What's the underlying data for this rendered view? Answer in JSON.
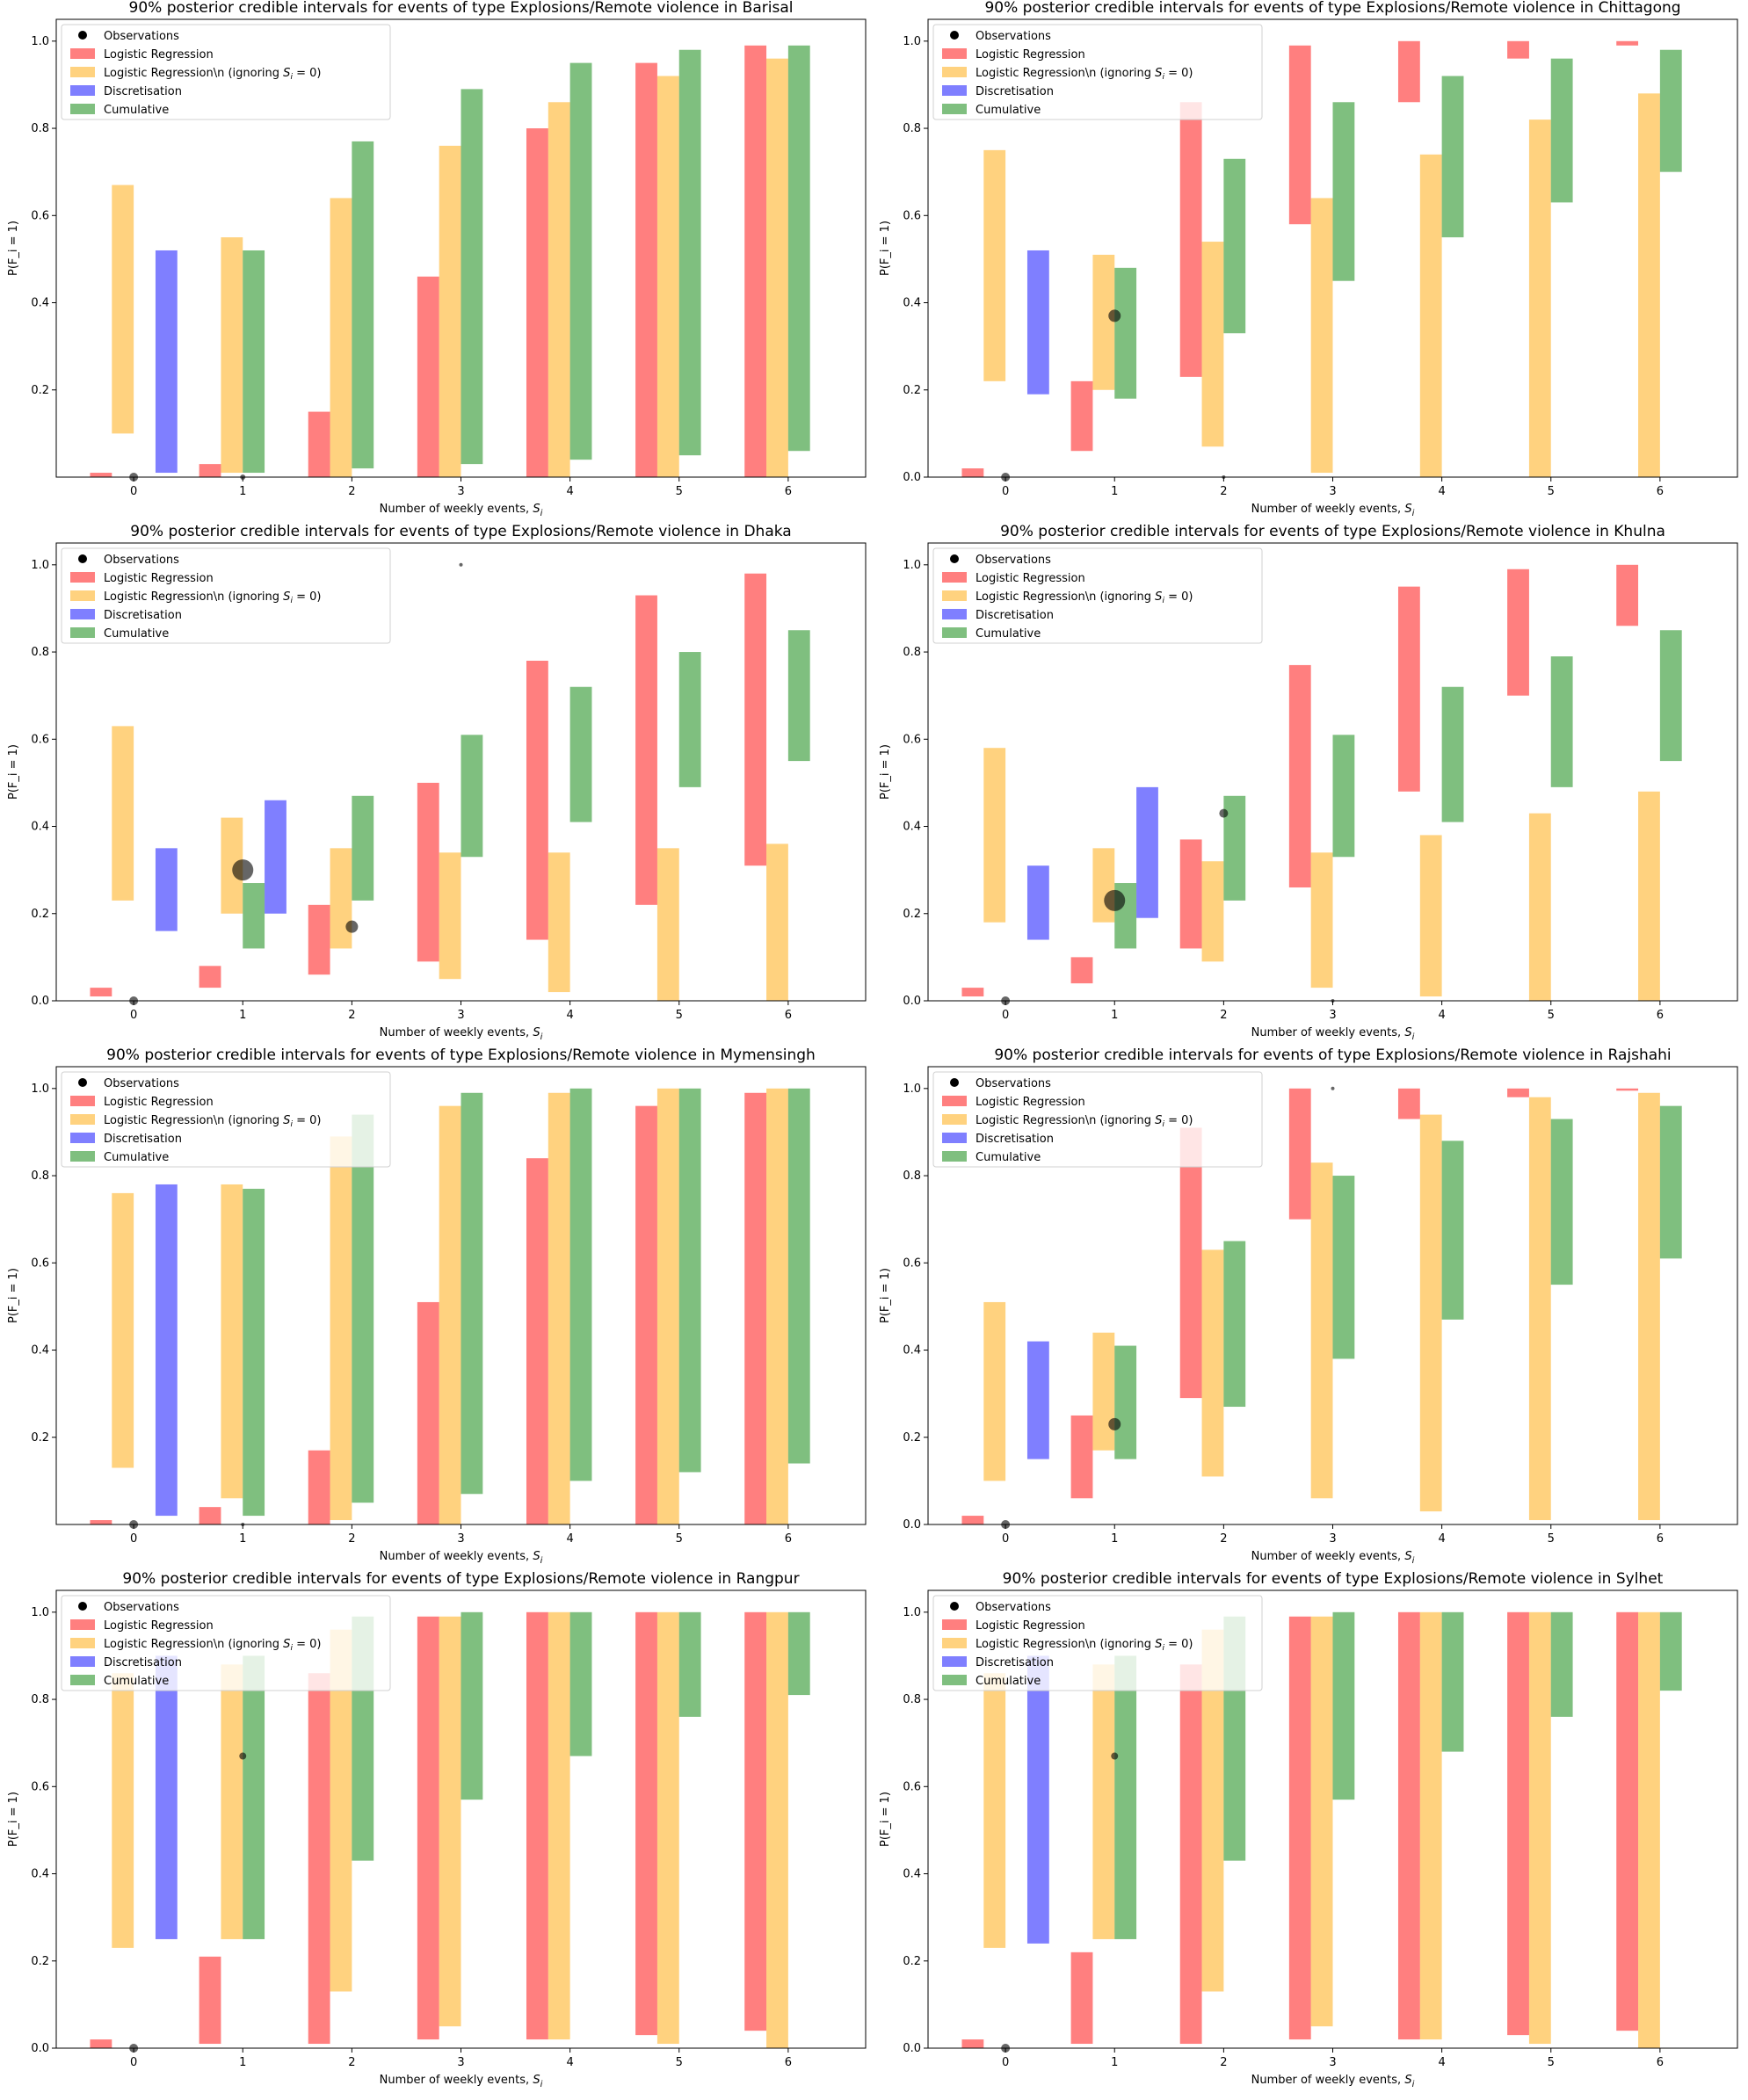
{
  "figure": {
    "xlabel_prefix": "Number of weekly events, ",
    "xlabel_var": "S",
    "xlabel_sub": "i",
    "ylabel": "P(F_i = 1)",
    "legend": [
      {
        "name": "Observations",
        "kind": "dot",
        "color": "#000000"
      },
      {
        "name": "Logistic Regression",
        "kind": "box",
        "color": "#ff0000"
      },
      {
        "name": "Logistic Regression\\n  (ignoring ",
        "tail": " = 0)",
        "math": "S",
        "sub": "i",
        "kind": "box",
        "color": "#ffa500"
      },
      {
        "name": "Discretisation",
        "kind": "box",
        "color": "#0000ff"
      },
      {
        "name": "Cumulative",
        "kind": "box",
        "color": "#008000"
      }
    ]
  },
  "chart_data": [
    {
      "type": "bar",
      "title": "90% posterior credible intervals for events of type Explosions/Remote violence in Barisal",
      "xticks": [
        0,
        1,
        2,
        3,
        4,
        5,
        6
      ],
      "ylim": [
        0,
        1.05
      ],
      "yticks": [
        "0.2",
        "0.4",
        "0.6",
        "0.8",
        "1.0"
      ],
      "grid": false,
      "legend_position": "top-left",
      "logistic": [
        [
          0.0,
          0.01
        ],
        [
          0.0,
          0.03
        ],
        [
          0.0,
          0.15
        ],
        [
          0.0,
          0.46
        ],
        [
          0.0,
          0.8
        ],
        [
          0.0,
          0.95
        ],
        [
          0.0,
          0.99
        ]
      ],
      "logistic_ignoring": [
        [
          0.1,
          0.67
        ],
        [
          0.01,
          0.55
        ],
        [
          0.0,
          0.64
        ],
        [
          0.0,
          0.76
        ],
        [
          0.0,
          0.86
        ],
        [
          0.0,
          0.92
        ],
        [
          0.0,
          0.96
        ]
      ],
      "discretisation": [
        [
          0.01,
          0.52
        ]
      ],
      "cumulative": [
        null,
        [
          0.01,
          0.52
        ],
        [
          0.02,
          0.77
        ],
        [
          0.03,
          0.89
        ],
        [
          0.04,
          0.95
        ],
        [
          0.05,
          0.98
        ],
        [
          0.06,
          0.99
        ]
      ],
      "observations": [
        {
          "x": 0,
          "y": 0.0,
          "size": 5
        },
        {
          "x": 1,
          "y": 0.0,
          "size": 3
        }
      ]
    },
    {
      "type": "bar",
      "title": "90% posterior credible intervals for events of type Explosions/Remote violence in Chittagong",
      "xticks": [
        0,
        1,
        2,
        3,
        4,
        5,
        6
      ],
      "ylim": [
        0,
        1.05
      ],
      "yticks": [
        "0.0",
        "0.2",
        "0.4",
        "0.6",
        "0.8",
        "1.0"
      ],
      "grid": false,
      "legend_position": "top-left",
      "logistic": [
        [
          0.0,
          0.02
        ],
        [
          0.06,
          0.22
        ],
        [
          0.23,
          0.86
        ],
        [
          0.58,
          0.99
        ],
        [
          0.86,
          1.0
        ],
        [
          0.96,
          1.0
        ],
        [
          0.99,
          1.0
        ]
      ],
      "logistic_ignoring": [
        [
          0.22,
          0.75
        ],
        [
          0.2,
          0.51
        ],
        [
          0.07,
          0.54
        ],
        [
          0.01,
          0.64
        ],
        [
          0.0,
          0.74
        ],
        [
          0.0,
          0.82
        ],
        [
          0.0,
          0.88
        ]
      ],
      "discretisation": [
        [
          0.19,
          0.52
        ]
      ],
      "cumulative": [
        null,
        [
          0.18,
          0.48
        ],
        [
          0.33,
          0.73
        ],
        [
          0.45,
          0.86
        ],
        [
          0.55,
          0.92
        ],
        [
          0.63,
          0.96
        ],
        [
          0.7,
          0.98
        ]
      ],
      "observations": [
        {
          "x": 0,
          "y": 0.0,
          "size": 5
        },
        {
          "x": 1,
          "y": 0.37,
          "size": 7
        },
        {
          "x": 2,
          "y": 0.0,
          "size": 2
        }
      ]
    },
    {
      "type": "bar",
      "title": "90% posterior credible intervals for events of type Explosions/Remote violence in Dhaka",
      "xticks": [
        0,
        1,
        2,
        3,
        4,
        5,
        6
      ],
      "ylim": [
        0,
        1.05
      ],
      "yticks": [
        "0.0",
        "0.2",
        "0.4",
        "0.6",
        "0.8",
        "1.0"
      ],
      "grid": false,
      "legend_position": "top-left",
      "logistic": [
        [
          0.01,
          0.03
        ],
        [
          0.03,
          0.08
        ],
        [
          0.06,
          0.22
        ],
        [
          0.09,
          0.5
        ],
        [
          0.14,
          0.78
        ],
        [
          0.22,
          0.93
        ],
        [
          0.31,
          0.98
        ]
      ],
      "logistic_ignoring": [
        [
          0.23,
          0.63
        ],
        [
          0.2,
          0.42
        ],
        [
          0.12,
          0.35
        ],
        [
          0.05,
          0.34
        ],
        [
          0.02,
          0.34
        ],
        [
          0.0,
          0.35
        ],
        [
          0.0,
          0.36
        ]
      ],
      "discretisation": [
        [
          0.16,
          0.35
        ],
        [
          0.2,
          0.46
        ]
      ],
      "cumulative": [
        null,
        [
          0.12,
          0.27
        ],
        [
          0.23,
          0.47
        ],
        [
          0.33,
          0.61
        ],
        [
          0.41,
          0.72
        ],
        [
          0.49,
          0.8
        ],
        [
          0.55,
          0.85
        ]
      ],
      "observations": [
        {
          "x": 0,
          "y": 0.0,
          "size": 5
        },
        {
          "x": 1,
          "y": 0.3,
          "size": 12
        },
        {
          "x": 2,
          "y": 0.17,
          "size": 7
        },
        {
          "x": 3,
          "y": 1.0,
          "size": 2
        }
      ]
    },
    {
      "type": "bar",
      "title": "90% posterior credible intervals for events of type Explosions/Remote violence in Khulna",
      "xticks": [
        0,
        1,
        2,
        3,
        4,
        5,
        6
      ],
      "ylim": [
        0,
        1.05
      ],
      "yticks": [
        "0.0",
        "0.2",
        "0.4",
        "0.6",
        "0.8",
        "1.0"
      ],
      "grid": false,
      "legend_position": "top-left",
      "logistic": [
        [
          0.01,
          0.03
        ],
        [
          0.04,
          0.1
        ],
        [
          0.12,
          0.37
        ],
        [
          0.26,
          0.77
        ],
        [
          0.48,
          0.95
        ],
        [
          0.7,
          0.99
        ],
        [
          0.86,
          1.0
        ]
      ],
      "logistic_ignoring": [
        [
          0.18,
          0.58
        ],
        [
          0.18,
          0.35
        ],
        [
          0.09,
          0.32
        ],
        [
          0.03,
          0.34
        ],
        [
          0.01,
          0.38
        ],
        [
          0.0,
          0.43
        ],
        [
          0.0,
          0.48
        ]
      ],
      "discretisation": [
        [
          0.14,
          0.31
        ],
        [
          0.19,
          0.49
        ]
      ],
      "cumulative": [
        null,
        [
          0.12,
          0.27
        ],
        [
          0.23,
          0.47
        ],
        [
          0.33,
          0.61
        ],
        [
          0.41,
          0.72
        ],
        [
          0.49,
          0.79
        ],
        [
          0.55,
          0.85
        ]
      ],
      "observations": [
        {
          "x": 0,
          "y": 0.0,
          "size": 5
        },
        {
          "x": 1,
          "y": 0.23,
          "size": 12
        },
        {
          "x": 2,
          "y": 0.43,
          "size": 5
        },
        {
          "x": 3,
          "y": 0.0,
          "size": 2
        }
      ]
    },
    {
      "type": "bar",
      "title": "90% posterior credible intervals for events of type Explosions/Remote violence in Mymensingh",
      "xticks": [
        0,
        1,
        2,
        3,
        4,
        5,
        6
      ],
      "ylim": [
        0,
        1.05
      ],
      "yticks": [
        "0.2",
        "0.4",
        "0.6",
        "0.8",
        "1.0"
      ],
      "grid": false,
      "legend_position": "top-left",
      "logistic": [
        [
          0.0,
          0.01
        ],
        [
          0.0,
          0.04
        ],
        [
          0.0,
          0.17
        ],
        [
          0.0,
          0.51
        ],
        [
          0.0,
          0.84
        ],
        [
          0.0,
          0.96
        ],
        [
          0.0,
          0.99
        ]
      ],
      "logistic_ignoring": [
        [
          0.13,
          0.76
        ],
        [
          0.06,
          0.78
        ],
        [
          0.01,
          0.89
        ],
        [
          0.0,
          0.96
        ],
        [
          0.0,
          0.99
        ],
        [
          0.0,
          1.0
        ],
        [
          0.0,
          1.0
        ]
      ],
      "discretisation": [
        [
          0.02,
          0.78
        ]
      ],
      "cumulative": [
        null,
        [
          0.02,
          0.77
        ],
        [
          0.05,
          0.94
        ],
        [
          0.07,
          0.99
        ],
        [
          0.1,
          1.0
        ],
        [
          0.12,
          1.0
        ],
        [
          0.14,
          1.0
        ]
      ],
      "observations": [
        {
          "x": 0,
          "y": 0.0,
          "size": 5
        },
        {
          "x": 1,
          "y": 0.0,
          "size": 2
        }
      ]
    },
    {
      "type": "bar",
      "title": "90% posterior credible intervals for events of type Explosions/Remote violence in Rajshahi",
      "xticks": [
        0,
        1,
        2,
        3,
        4,
        5,
        6
      ],
      "ylim": [
        0,
        1.05
      ],
      "yticks": [
        "0.0",
        "0.2",
        "0.4",
        "0.6",
        "0.8",
        "1.0"
      ],
      "grid": false,
      "legend_position": "top-left",
      "logistic": [
        [
          0.0,
          0.02
        ],
        [
          0.06,
          0.25
        ],
        [
          0.29,
          0.91
        ],
        [
          0.7,
          1.0
        ],
        [
          0.93,
          1.0
        ],
        [
          0.98,
          1.0
        ],
        [
          0.995,
          1.0
        ]
      ],
      "logistic_ignoring": [
        [
          0.1,
          0.51
        ],
        [
          0.17,
          0.44
        ],
        [
          0.11,
          0.63
        ],
        [
          0.06,
          0.83
        ],
        [
          0.03,
          0.94
        ],
        [
          0.01,
          0.98
        ],
        [
          0.01,
          0.99
        ]
      ],
      "discretisation": [
        [
          0.15,
          0.42
        ]
      ],
      "cumulative": [
        null,
        [
          0.15,
          0.41
        ],
        [
          0.27,
          0.65
        ],
        [
          0.38,
          0.8
        ],
        [
          0.47,
          0.88
        ],
        [
          0.55,
          0.93
        ],
        [
          0.61,
          0.96
        ]
      ],
      "observations": [
        {
          "x": 0,
          "y": 0.0,
          "size": 5
        },
        {
          "x": 1,
          "y": 0.23,
          "size": 7
        },
        {
          "x": 3,
          "y": 1.0,
          "size": 2
        }
      ]
    },
    {
      "type": "bar",
      "title": "90% posterior credible intervals for events of type Explosions/Remote violence in Rangpur",
      "xticks": [
        0,
        1,
        2,
        3,
        4,
        5,
        6
      ],
      "ylim": [
        0,
        1.05
      ],
      "yticks": [
        "0.0",
        "0.2",
        "0.4",
        "0.6",
        "0.8",
        "1.0"
      ],
      "grid": false,
      "legend_position": "top-left",
      "logistic": [
        [
          0.0,
          0.02
        ],
        [
          0.01,
          0.21
        ],
        [
          0.01,
          0.86
        ],
        [
          0.02,
          0.99
        ],
        [
          0.02,
          1.0
        ],
        [
          0.03,
          1.0
        ],
        [
          0.04,
          1.0
        ]
      ],
      "logistic_ignoring": [
        [
          0.23,
          0.86
        ],
        [
          0.25,
          0.88
        ],
        [
          0.13,
          0.96
        ],
        [
          0.05,
          0.99
        ],
        [
          0.02,
          1.0
        ],
        [
          0.01,
          1.0
        ],
        [
          0.0,
          1.0
        ]
      ],
      "discretisation": [
        [
          0.25,
          0.9
        ]
      ],
      "cumulative": [
        null,
        [
          0.25,
          0.9
        ],
        [
          0.43,
          0.99
        ],
        [
          0.57,
          1.0
        ],
        [
          0.67,
          1.0
        ],
        [
          0.76,
          1.0
        ],
        [
          0.81,
          1.0
        ]
      ],
      "observations": [
        {
          "x": 0,
          "y": 0.0,
          "size": 5
        },
        {
          "x": 1,
          "y": 0.67,
          "size": 4
        }
      ]
    },
    {
      "type": "bar",
      "title": "90% posterior credible intervals for events of type Explosions/Remote violence in Sylhet",
      "xticks": [
        0,
        1,
        2,
        3,
        4,
        5,
        6
      ],
      "ylim": [
        0,
        1.05
      ],
      "yticks": [
        "0.0",
        "0.2",
        "0.4",
        "0.6",
        "0.8",
        "1.0"
      ],
      "grid": false,
      "legend_position": "top-left",
      "logistic": [
        [
          0.0,
          0.02
        ],
        [
          0.01,
          0.22
        ],
        [
          0.01,
          0.88
        ],
        [
          0.02,
          0.99
        ],
        [
          0.02,
          1.0
        ],
        [
          0.03,
          1.0
        ],
        [
          0.04,
          1.0
        ]
      ],
      "logistic_ignoring": [
        [
          0.23,
          0.86
        ],
        [
          0.25,
          0.88
        ],
        [
          0.13,
          0.96
        ],
        [
          0.05,
          0.99
        ],
        [
          0.02,
          1.0
        ],
        [
          0.01,
          1.0
        ],
        [
          0.0,
          1.0
        ]
      ],
      "discretisation": [
        [
          0.24,
          0.9
        ]
      ],
      "cumulative": [
        null,
        [
          0.25,
          0.9
        ],
        [
          0.43,
          0.99
        ],
        [
          0.57,
          1.0
        ],
        [
          0.68,
          1.0
        ],
        [
          0.76,
          1.0
        ],
        [
          0.82,
          1.0
        ]
      ],
      "observations": [
        {
          "x": 0,
          "y": 0.0,
          "size": 5
        },
        {
          "x": 1,
          "y": 0.67,
          "size": 4
        }
      ]
    }
  ]
}
